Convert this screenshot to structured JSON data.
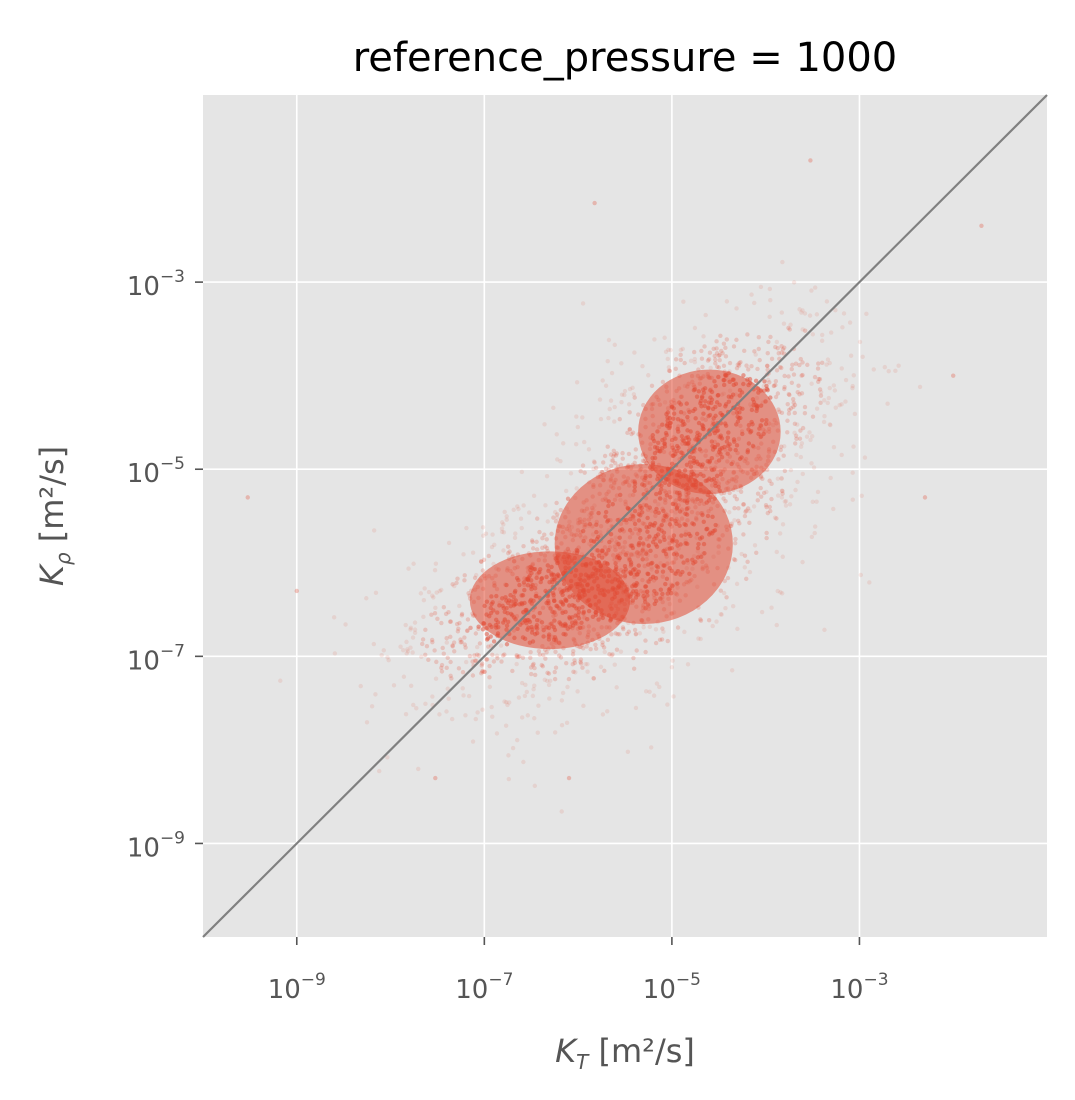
{
  "chart_data": {
    "type": "scatter",
    "title": "reference_pressure = 1000",
    "xlabel": {
      "symbol": "K",
      "subscript": "T",
      "unit": " [m²/s]"
    },
    "ylabel": {
      "symbol": "K",
      "subscript": "ρ",
      "unit": " [m²/s]"
    },
    "scale": "log",
    "xlim": [
      1e-10,
      0.1
    ],
    "ylim": [
      1e-10,
      0.1
    ],
    "x_ticks": [
      {
        "value": 1e-09,
        "base": "10",
        "exp": "−9"
      },
      {
        "value": 1e-07,
        "base": "10",
        "exp": "−7"
      },
      {
        "value": 1e-05,
        "base": "10",
        "exp": "−5"
      },
      {
        "value": 0.001,
        "base": "10",
        "exp": "−3"
      }
    ],
    "y_ticks": [
      {
        "value": 0.001,
        "base": "10",
        "exp": "−3"
      },
      {
        "value": 1e-05,
        "base": "10",
        "exp": "−5"
      },
      {
        "value": 1e-07,
        "base": "10",
        "exp": "−7"
      },
      {
        "value": 1e-09,
        "base": "10",
        "exp": "−9"
      }
    ],
    "grid": true,
    "reference_line": {
      "type": "identity",
      "label": "y = x"
    },
    "point_color": "#E24A33",
    "line_color": "#808080",
    "background_color": "#E5E5E5",
    "density_clusters": [
      {
        "log10_x_center": -6.3,
        "log10_y_center": -6.4,
        "spread_x": 0.9,
        "spread_y": 0.55
      },
      {
        "log10_x_center": -5.3,
        "log10_y_center": -5.8,
        "spread_x": 1.0,
        "spread_y": 0.9
      },
      {
        "log10_x_center": -4.6,
        "log10_y_center": -4.6,
        "spread_x": 0.8,
        "spread_y": 0.7
      }
    ],
    "outlier_points": [
      {
        "x": 3e-10,
        "y": 5e-06
      },
      {
        "x": 0.0003,
        "y": 0.02
      },
      {
        "x": 0.02,
        "y": 0.004
      },
      {
        "x": 1.5e-06,
        "y": 0.007
      },
      {
        "x": 0.01,
        "y": 0.0001
      },
      {
        "x": 0.005,
        "y": 5e-06
      },
      {
        "x": 3e-08,
        "y": 5e-09
      },
      {
        "x": 8e-07,
        "y": 5e-09
      },
      {
        "x": 1e-09,
        "y": 5e-07
      }
    ]
  }
}
